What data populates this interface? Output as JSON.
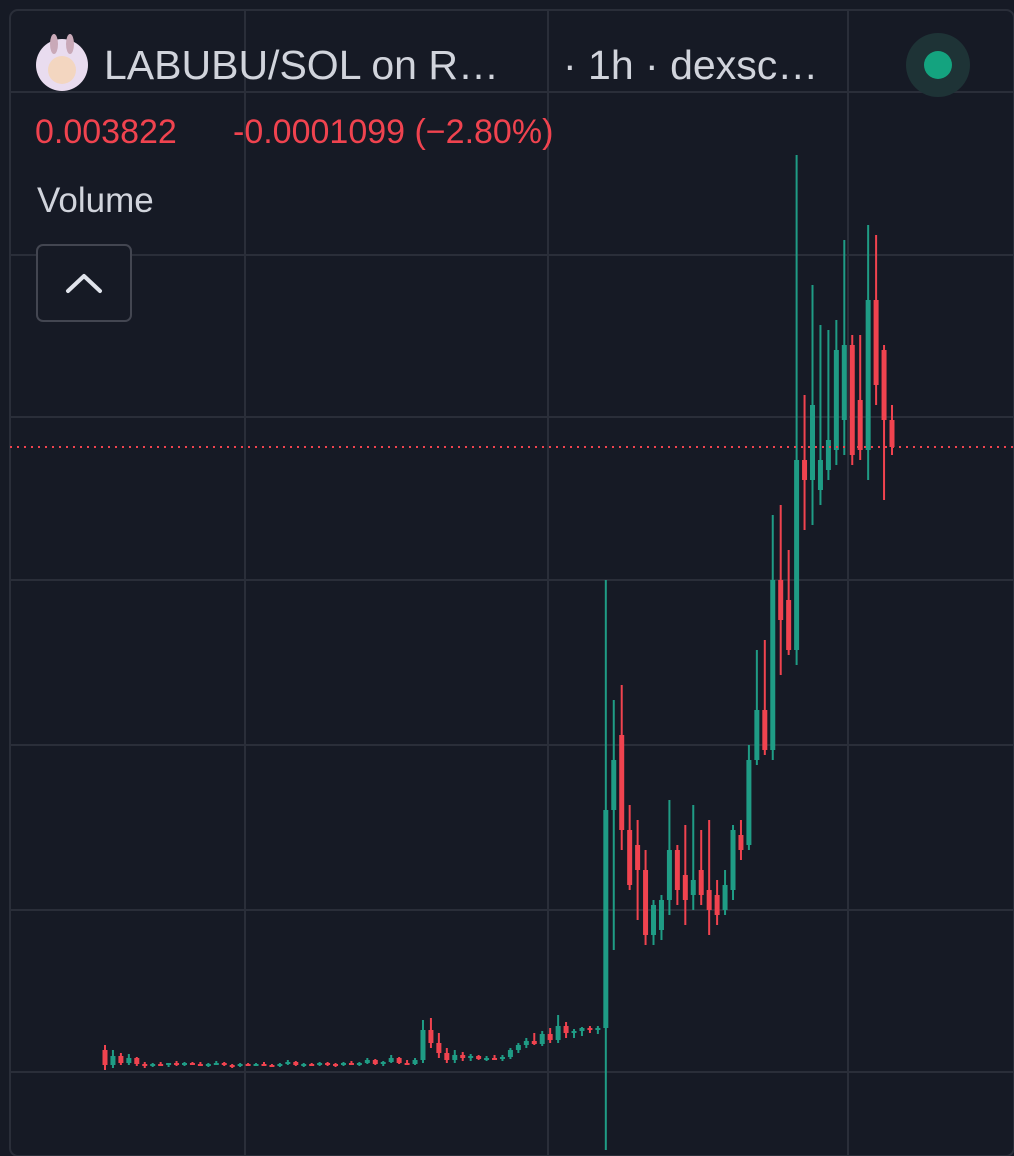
{
  "header": {
    "symbol": "LABUBU/SOL on R…",
    "interval": "· 1h · dexsc…",
    "price": "0.003822",
    "change": "-0.0001099 (−2.80%)",
    "indicator": "Volume"
  },
  "chart_data": {
    "type": "candlestick",
    "ylim": [
      0.002404,
      0.004716
    ],
    "up_color": "#1f9c85",
    "down_color": "#f0434f",
    "price_line_color": "#f0434f",
    "candles": [
      [
        0.002616,
        0.002626,
        0.002576,
        0.002586
      ],
      [
        0.002586,
        0.002616,
        0.00258,
        0.002604
      ],
      [
        0.002604,
        0.00261,
        0.002586,
        0.00259
      ],
      [
        0.00259,
        0.002608,
        0.002586,
        0.0026
      ],
      [
        0.0026,
        0.002602,
        0.002584,
        0.002588
      ],
      [
        0.002588,
        0.002592,
        0.00258,
        0.002584
      ],
      [
        0.002584,
        0.00259,
        0.002582,
        0.002588
      ],
      [
        0.002588,
        0.002592,
        0.002584,
        0.002586
      ],
      [
        0.002586,
        0.00259,
        0.002582,
        0.00259
      ],
      [
        0.00259,
        0.002594,
        0.002584,
        0.002586
      ],
      [
        0.002586,
        0.002592,
        0.002584,
        0.00259
      ],
      [
        0.00259,
        0.002592,
        0.002586,
        0.002588
      ],
      [
        0.002588,
        0.002592,
        0.002584,
        0.002586
      ],
      [
        0.002586,
        0.00259,
        0.002582,
        0.002588
      ],
      [
        0.002588,
        0.002594,
        0.002586,
        0.00259
      ],
      [
        0.00259,
        0.002592,
        0.002584,
        0.002586
      ],
      [
        0.002586,
        0.002588,
        0.00258,
        0.002584
      ],
      [
        0.002584,
        0.00259,
        0.002582,
        0.002588
      ],
      [
        0.002588,
        0.00259,
        0.002584,
        0.002586
      ],
      [
        0.002586,
        0.00259,
        0.002584,
        0.002588
      ],
      [
        0.002588,
        0.002592,
        0.002584,
        0.002586
      ],
      [
        0.002586,
        0.002588,
        0.002582,
        0.002584
      ],
      [
        0.002584,
        0.00259,
        0.002582,
        0.002588
      ],
      [
        0.002588,
        0.002596,
        0.002586,
        0.002592
      ],
      [
        0.002592,
        0.002594,
        0.002584,
        0.002586
      ],
      [
        0.002586,
        0.00259,
        0.002582,
        0.002588
      ],
      [
        0.002588,
        0.00259,
        0.002584,
        0.002586
      ],
      [
        0.002586,
        0.002592,
        0.002584,
        0.00259
      ],
      [
        0.00259,
        0.002592,
        0.002584,
        0.002588
      ],
      [
        0.002588,
        0.00259,
        0.002582,
        0.002586
      ],
      [
        0.002586,
        0.002592,
        0.002584,
        0.00259
      ],
      [
        0.00259,
        0.002594,
        0.002586,
        0.002588
      ],
      [
        0.002588,
        0.002592,
        0.002584,
        0.00259
      ],
      [
        0.00259,
        0.0026,
        0.002588,
        0.002596
      ],
      [
        0.002596,
        0.002598,
        0.002586,
        0.002588
      ],
      [
        0.002588,
        0.002594,
        0.002584,
        0.002592
      ],
      [
        0.002592,
        0.002606,
        0.00259,
        0.0026
      ],
      [
        0.0026,
        0.002602,
        0.002588,
        0.00259
      ],
      [
        0.00259,
        0.002596,
        0.002586,
        0.002588
      ],
      [
        0.002588,
        0.0026,
        0.002586,
        0.002596
      ],
      [
        0.002596,
        0.002676,
        0.00259,
        0.002656
      ],
      [
        0.002656,
        0.00268,
        0.00262,
        0.00263
      ],
      [
        0.00263,
        0.00265,
        0.0026,
        0.00261
      ],
      [
        0.00261,
        0.00262,
        0.00259,
        0.002596
      ],
      [
        0.002596,
        0.002616,
        0.00259,
        0.002606
      ],
      [
        0.002606,
        0.002612,
        0.002594,
        0.0026
      ],
      [
        0.0026,
        0.002608,
        0.002594,
        0.002604
      ],
      [
        0.002604,
        0.002606,
        0.002596,
        0.002598
      ],
      [
        0.002598,
        0.002604,
        0.002594,
        0.0026
      ],
      [
        0.0026,
        0.002606,
        0.002596,
        0.002598
      ],
      [
        0.002598,
        0.002606,
        0.002594,
        0.002602
      ],
      [
        0.002602,
        0.00262,
        0.002598,
        0.002616
      ],
      [
        0.002616,
        0.00263,
        0.00261,
        0.002626
      ],
      [
        0.002626,
        0.00264,
        0.00262,
        0.002634
      ],
      [
        0.002634,
        0.00265,
        0.002626,
        0.002628
      ],
      [
        0.002628,
        0.002654,
        0.002624,
        0.002648
      ],
      [
        0.002648,
        0.00266,
        0.00263,
        0.002636
      ],
      [
        0.002636,
        0.002686,
        0.00263,
        0.002664
      ],
      [
        0.002664,
        0.002672,
        0.00264,
        0.00265
      ],
      [
        0.00265,
        0.002658,
        0.00264,
        0.002654
      ],
      [
        0.002654,
        0.002662,
        0.002644,
        0.00266
      ],
      [
        0.00266,
        0.002664,
        0.00265,
        0.002656
      ],
      [
        0.002656,
        0.002664,
        0.002648,
        0.00266
      ],
      [
        0.00266,
        0.003556,
        0.002416,
        0.003096
      ],
      [
        0.003096,
        0.003316,
        0.002816,
        0.003196
      ],
      [
        0.003246,
        0.003346,
        0.003016,
        0.003056
      ],
      [
        0.003056,
        0.003106,
        0.002936,
        0.002946
      ],
      [
        0.003026,
        0.003076,
        0.002876,
        0.002976
      ],
      [
        0.002976,
        0.003016,
        0.002826,
        0.002846
      ],
      [
        0.002846,
        0.002916,
        0.002826,
        0.002906
      ],
      [
        0.002856,
        0.002926,
        0.002836,
        0.002916
      ],
      [
        0.002916,
        0.003116,
        0.002886,
        0.003016
      ],
      [
        0.003016,
        0.003026,
        0.002906,
        0.002936
      ],
      [
        0.002966,
        0.003066,
        0.002866,
        0.002916
      ],
      [
        0.002926,
        0.003106,
        0.002896,
        0.002956
      ],
      [
        0.002976,
        0.003056,
        0.002906,
        0.002926
      ],
      [
        0.002936,
        0.003076,
        0.002846,
        0.002896
      ],
      [
        0.002926,
        0.002956,
        0.002866,
        0.002886
      ],
      [
        0.002896,
        0.002976,
        0.002886,
        0.002946
      ],
      [
        0.002936,
        0.003066,
        0.002916,
        0.003056
      ],
      [
        0.003046,
        0.003076,
        0.002996,
        0.003016
      ],
      [
        0.003026,
        0.003226,
        0.003016,
        0.003196
      ],
      [
        0.003196,
        0.003416,
        0.003186,
        0.003296
      ],
      [
        0.003296,
        0.003436,
        0.003206,
        0.003216
      ],
      [
        0.003216,
        0.003686,
        0.003196,
        0.003556
      ],
      [
        0.003556,
        0.003706,
        0.003366,
        0.003476
      ],
      [
        0.003516,
        0.003616,
        0.003406,
        0.003416
      ],
      [
        0.003416,
        0.004406,
        0.003386,
        0.003796
      ],
      [
        0.003796,
        0.003926,
        0.003656,
        0.003756
      ],
      [
        0.003756,
        0.004146,
        0.003666,
        0.003906
      ],
      [
        0.003736,
        0.004066,
        0.003706,
        0.003796
      ],
      [
        0.003776,
        0.004056,
        0.003756,
        0.003836
      ],
      [
        0.003816,
        0.004076,
        0.003786,
        0.004016
      ],
      [
        0.003876,
        0.004236,
        0.003806,
        0.004026
      ],
      [
        0.004026,
        0.004046,
        0.003786,
        0.003806
      ],
      [
        0.003916,
        0.004046,
        0.003796,
        0.003816
      ],
      [
        0.003816,
        0.004266,
        0.003756,
        0.004116
      ],
      [
        0.004116,
        0.004246,
        0.003906,
        0.003946
      ],
      [
        0.004016,
        0.004026,
        0.003716,
        0.003876
      ],
      [
        0.003876,
        0.003906,
        0.003806,
        0.003822
      ]
    ]
  }
}
